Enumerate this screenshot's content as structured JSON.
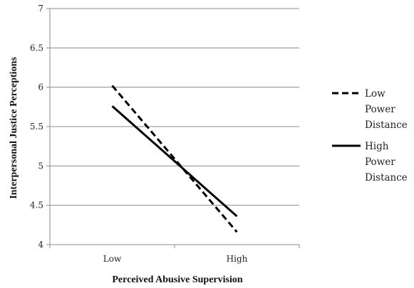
{
  "chart_data": {
    "type": "line",
    "title": "",
    "xlabel": "Perceived Abusive Supervision",
    "ylabel": "Interpersonal  Justice Perceptions",
    "categories": [
      "Low",
      "High"
    ],
    "ylim": [
      4,
      7
    ],
    "yticks": [
      "4",
      "4.5",
      "5",
      "5.5",
      "6",
      "6.5",
      "7"
    ],
    "grid": true,
    "legend_position": "right",
    "series": [
      {
        "name": "Low Power Distance",
        "name_lines": [
          "Low",
          "Power",
          "Distance"
        ],
        "values": [
          6.02,
          4.16
        ],
        "style": "dashed",
        "color": "#000000"
      },
      {
        "name": "High Power Distance",
        "name_lines": [
          "High",
          "Power",
          "Distance"
        ],
        "values": [
          5.76,
          4.36
        ],
        "style": "solid",
        "color": "#000000"
      }
    ]
  }
}
